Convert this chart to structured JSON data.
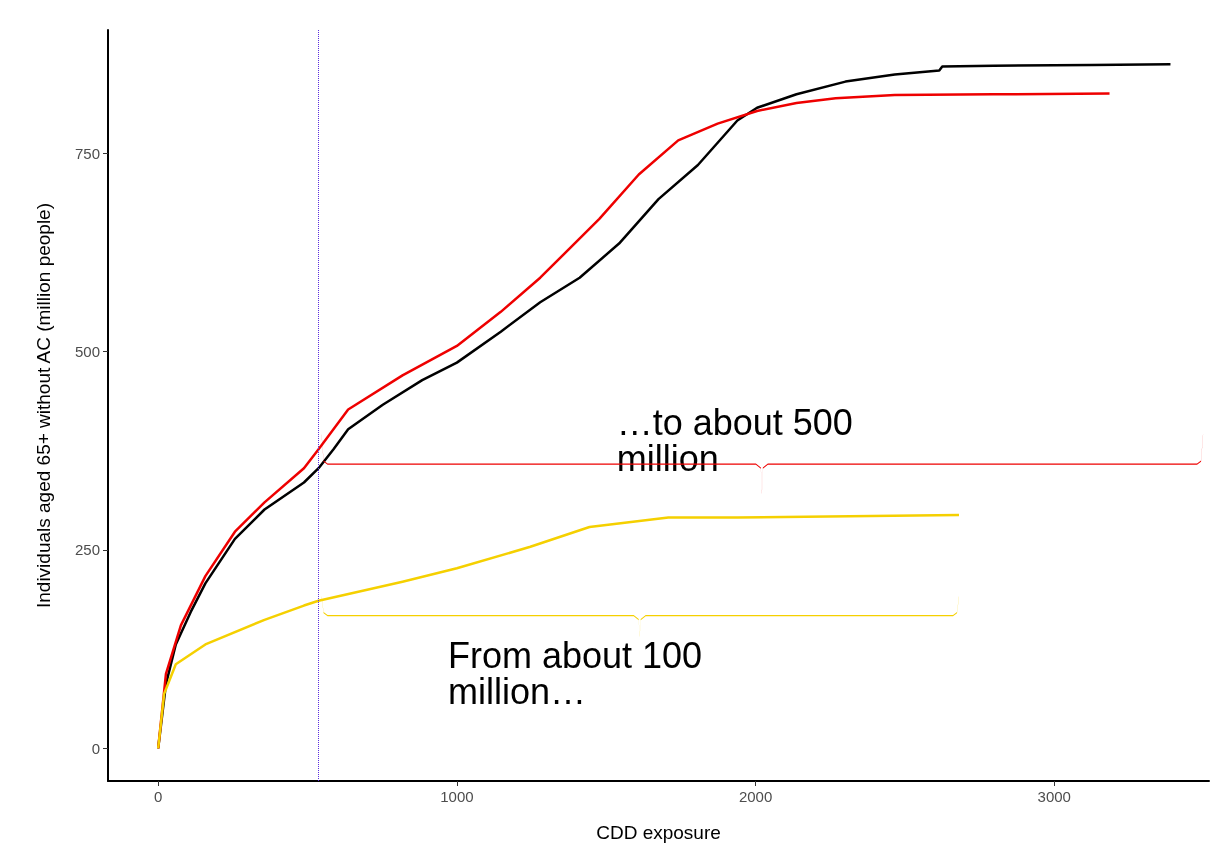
{
  "chart_data": {
    "type": "line",
    "xlabel": "CDD exposure",
    "ylabel": "Individuals aged 65+ without AC (million people)",
    "xlim": [
      -168,
      3518
    ],
    "xticks": [
      0,
      1000,
      2000,
      3000
    ],
    "ylim": [
      -41,
      905
    ],
    "yticks": [
      0,
      250,
      500,
      750
    ],
    "grid": false,
    "marker": "none",
    "line_style": "solid",
    "series": [
      {
        "color": "#000000",
        "x": [
          0,
          26,
          59,
          109,
          158,
          257,
          356,
          488,
          537,
          587,
          636,
          752,
          884,
          1000,
          1147,
          1279,
          1411,
          1543,
          1675,
          1807,
          1939,
          2005,
          2137,
          2301,
          2466,
          2615,
          2625,
          2796,
          3126,
          3389
        ],
        "values": [
          0,
          81,
          131,
          172,
          208,
          264,
          301,
          335,
          353,
          377,
          402,
          433,
          464,
          486,
          525,
          562,
          593,
          636,
          692,
          735,
          791,
          807,
          824,
          840,
          849,
          854,
          859,
          860,
          861,
          862
        ]
      },
      {
        "color": "#ee0000",
        "x": [
          0,
          26,
          76,
          158,
          257,
          356,
          488,
          537,
          636,
          818,
          1000,
          1147,
          1279,
          1477,
          1609,
          1741,
          1873,
          2005,
          2137,
          2268,
          2466,
          2796,
          3185
        ],
        "values": [
          0,
          94,
          155,
          217,
          273,
          310,
          353,
          377,
          427,
          470,
          507,
          550,
          593,
          667,
          723,
          766,
          787,
          803,
          813,
          819,
          823,
          824,
          825
        ]
      },
      {
        "color": "#f5d000",
        "x": [
          0,
          20,
          59,
          158,
          356,
          488,
          537,
          818,
          1000,
          1246,
          1444,
          1708,
          1939,
          2681
        ],
        "values": [
          0,
          69,
          106,
          131,
          162,
          180,
          186,
          210,
          227,
          254,
          279,
          291,
          291,
          294
        ]
      }
    ],
    "ref_lines": [
      {
        "axis": "x",
        "value": 537,
        "color": "#5b2ee0",
        "line_style": "dotted"
      }
    ],
    "annotations": [
      "From about 100 million…",
      "…to about 500 million"
    ]
  }
}
